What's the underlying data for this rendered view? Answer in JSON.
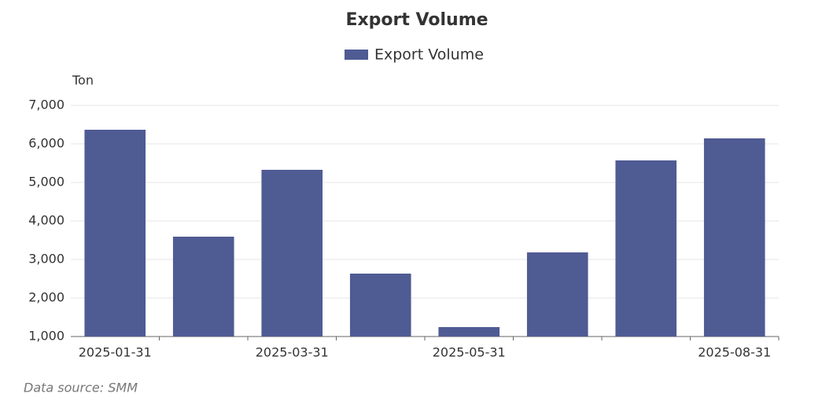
{
  "chart_data": {
    "type": "bar",
    "title": "Export Volume",
    "y_axis_label": "Ton",
    "source": "Data source:  SMM",
    "categories": [
      "2025-01-31",
      null,
      "2025-03-31",
      null,
      "2025-05-31",
      null,
      null,
      "2025-08-31"
    ],
    "series": [
      {
        "name": "Export Volume",
        "color": "#4f5b93",
        "values": [
          6367,
          3592,
          5327,
          2633,
          1245,
          3184,
          5571,
          6143
        ]
      }
    ],
    "ylim": [
      1000,
      7000
    ],
    "yticks": [
      {
        "value": 1000,
        "label": "1,000"
      },
      {
        "value": 2000,
        "label": "2,000"
      },
      {
        "value": 3000,
        "label": "3,000"
      },
      {
        "value": 4000,
        "label": "4,000"
      },
      {
        "value": 5000,
        "label": "5,000"
      },
      {
        "value": 6000,
        "label": "6,000"
      },
      {
        "value": 7000,
        "label": "7,000"
      }
    ],
    "grid": true,
    "legend": "top"
  }
}
